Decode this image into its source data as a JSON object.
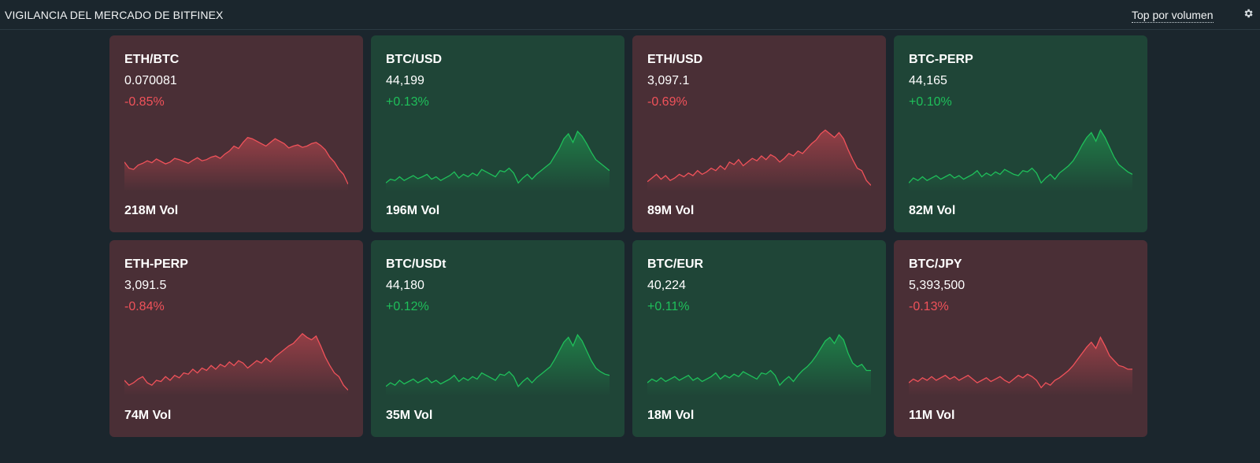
{
  "header": {
    "title": "VIGILANCIA DEL MERCADO DE BITFINEX",
    "sort_link": "Top por volumen",
    "settings_icon": "gear-icon"
  },
  "colors": {
    "background": "#1b262d",
    "card_down": "#4a2f36",
    "card_up": "#1f4537",
    "line_down": "#f0525a",
    "line_up": "#1fbf5a"
  },
  "tickers": [
    {
      "symbol": "ETH/BTC",
      "price": "0.070081",
      "change": "-0.85%",
      "direction": "down",
      "volume": "218M Vol",
      "spark": [
        0.4,
        0.3,
        0.28,
        0.35,
        0.38,
        0.42,
        0.39,
        0.45,
        0.41,
        0.37,
        0.4,
        0.46,
        0.44,
        0.41,
        0.38,
        0.43,
        0.47,
        0.42,
        0.44,
        0.48,
        0.5,
        0.46,
        0.53,
        0.58,
        0.66,
        0.62,
        0.72,
        0.8,
        0.78,
        0.74,
        0.7,
        0.66,
        0.72,
        0.78,
        0.74,
        0.7,
        0.63,
        0.66,
        0.68,
        0.64,
        0.66,
        0.7,
        0.72,
        0.67,
        0.6,
        0.48,
        0.4,
        0.28,
        0.2,
        0.04
      ]
    },
    {
      "symbol": "BTC/USD",
      "price": "44,199",
      "change": "+0.13%",
      "direction": "up",
      "volume": "196M Vol",
      "spark": [
        0.06,
        0.12,
        0.1,
        0.16,
        0.1,
        0.14,
        0.18,
        0.13,
        0.16,
        0.2,
        0.12,
        0.16,
        0.1,
        0.14,
        0.18,
        0.24,
        0.14,
        0.2,
        0.16,
        0.22,
        0.18,
        0.28,
        0.24,
        0.2,
        0.16,
        0.26,
        0.24,
        0.3,
        0.22,
        0.06,
        0.14,
        0.2,
        0.12,
        0.2,
        0.26,
        0.32,
        0.38,
        0.5,
        0.62,
        0.78,
        0.86,
        0.72,
        0.9,
        0.82,
        0.7,
        0.56,
        0.44,
        0.38,
        0.32,
        0.26
      ]
    },
    {
      "symbol": "ETH/USD",
      "price": "3,097.1",
      "change": "-0.69%",
      "direction": "down",
      "volume": "89M Vol",
      "spark": [
        0.08,
        0.14,
        0.2,
        0.12,
        0.18,
        0.1,
        0.14,
        0.2,
        0.16,
        0.22,
        0.18,
        0.26,
        0.2,
        0.24,
        0.3,
        0.26,
        0.34,
        0.28,
        0.4,
        0.36,
        0.44,
        0.34,
        0.4,
        0.46,
        0.42,
        0.5,
        0.44,
        0.52,
        0.48,
        0.4,
        0.46,
        0.54,
        0.5,
        0.58,
        0.54,
        0.62,
        0.7,
        0.76,
        0.86,
        0.92,
        0.86,
        0.8,
        0.88,
        0.78,
        0.6,
        0.44,
        0.3,
        0.26,
        0.1,
        0.02
      ]
    },
    {
      "symbol": "BTC-PERP",
      "price": "44,165",
      "change": "+0.10%",
      "direction": "up",
      "volume": "82M Vol",
      "spark": [
        0.06,
        0.14,
        0.1,
        0.16,
        0.1,
        0.14,
        0.18,
        0.12,
        0.16,
        0.2,
        0.14,
        0.18,
        0.12,
        0.16,
        0.2,
        0.26,
        0.16,
        0.22,
        0.18,
        0.24,
        0.2,
        0.28,
        0.24,
        0.2,
        0.18,
        0.26,
        0.24,
        0.3,
        0.22,
        0.06,
        0.14,
        0.2,
        0.12,
        0.22,
        0.28,
        0.34,
        0.42,
        0.54,
        0.68,
        0.8,
        0.88,
        0.74,
        0.92,
        0.8,
        0.64,
        0.48,
        0.36,
        0.3,
        0.24,
        0.2
      ]
    },
    {
      "symbol": "ETH-PERP",
      "price": "3,091.5",
      "change": "-0.84%",
      "direction": "down",
      "volume": "74M Vol",
      "spark": [
        0.18,
        0.1,
        0.14,
        0.2,
        0.24,
        0.14,
        0.1,
        0.18,
        0.16,
        0.24,
        0.18,
        0.26,
        0.22,
        0.3,
        0.28,
        0.36,
        0.3,
        0.38,
        0.34,
        0.42,
        0.36,
        0.44,
        0.4,
        0.48,
        0.42,
        0.5,
        0.46,
        0.38,
        0.44,
        0.5,
        0.46,
        0.54,
        0.48,
        0.56,
        0.62,
        0.68,
        0.74,
        0.78,
        0.86,
        0.94,
        0.88,
        0.84,
        0.9,
        0.74,
        0.56,
        0.42,
        0.3,
        0.24,
        0.1,
        0.02
      ]
    },
    {
      "symbol": "BTC/USDt",
      "price": "44,180",
      "change": "+0.12%",
      "direction": "up",
      "volume": "35M Vol",
      "spark": [
        0.08,
        0.14,
        0.1,
        0.18,
        0.12,
        0.16,
        0.2,
        0.14,
        0.18,
        0.22,
        0.14,
        0.18,
        0.12,
        0.16,
        0.2,
        0.26,
        0.16,
        0.22,
        0.18,
        0.24,
        0.2,
        0.3,
        0.26,
        0.22,
        0.18,
        0.28,
        0.26,
        0.32,
        0.24,
        0.08,
        0.16,
        0.22,
        0.14,
        0.22,
        0.28,
        0.34,
        0.4,
        0.52,
        0.66,
        0.8,
        0.88,
        0.74,
        0.92,
        0.82,
        0.66,
        0.5,
        0.38,
        0.32,
        0.28,
        0.26
      ]
    },
    {
      "symbol": "BTC/EUR",
      "price": "40,224",
      "change": "+0.11%",
      "direction": "up",
      "volume": "18M Vol",
      "spark": [
        0.14,
        0.2,
        0.16,
        0.22,
        0.16,
        0.2,
        0.24,
        0.18,
        0.22,
        0.26,
        0.18,
        0.22,
        0.16,
        0.2,
        0.24,
        0.3,
        0.2,
        0.26,
        0.22,
        0.28,
        0.24,
        0.32,
        0.28,
        0.24,
        0.2,
        0.3,
        0.28,
        0.34,
        0.26,
        0.1,
        0.18,
        0.24,
        0.16,
        0.26,
        0.34,
        0.4,
        0.48,
        0.58,
        0.7,
        0.82,
        0.88,
        0.78,
        0.92,
        0.84,
        0.62,
        0.46,
        0.4,
        0.44,
        0.34,
        0.34
      ]
    },
    {
      "symbol": "BTC/JPY",
      "price": "5,393,500",
      "change": "-0.13%",
      "direction": "down",
      "volume": "11M Vol",
      "spark": [
        0.14,
        0.2,
        0.16,
        0.22,
        0.18,
        0.24,
        0.18,
        0.22,
        0.26,
        0.2,
        0.24,
        0.18,
        0.22,
        0.26,
        0.2,
        0.14,
        0.18,
        0.22,
        0.16,
        0.2,
        0.24,
        0.18,
        0.14,
        0.2,
        0.26,
        0.22,
        0.28,
        0.24,
        0.18,
        0.06,
        0.14,
        0.1,
        0.18,
        0.22,
        0.28,
        0.34,
        0.42,
        0.52,
        0.62,
        0.72,
        0.8,
        0.7,
        0.88,
        0.74,
        0.58,
        0.5,
        0.42,
        0.4,
        0.36,
        0.36
      ]
    }
  ]
}
